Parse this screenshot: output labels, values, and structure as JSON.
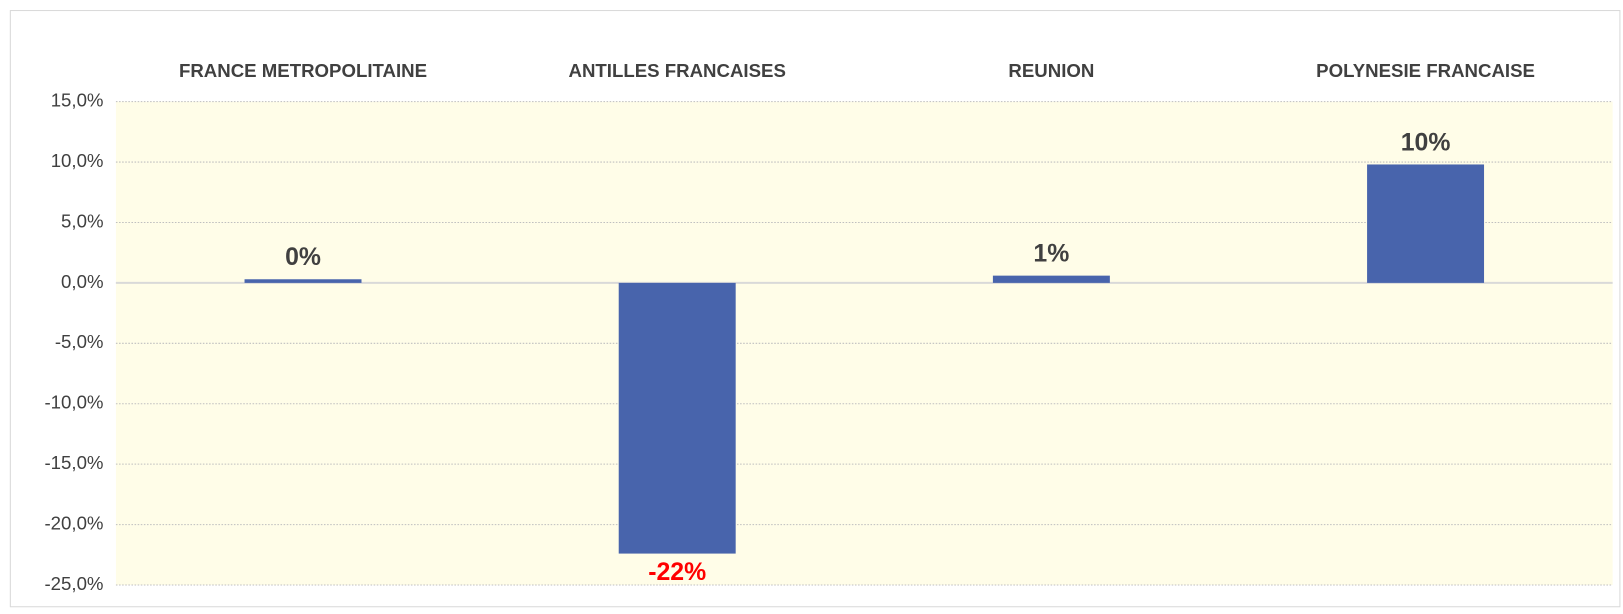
{
  "chart_data": {
    "type": "bar",
    "categories": [
      "FRANCE METROPOLITAINE",
      "ANTILLES FRANCAISES",
      "REUNION",
      "POLYNESIE FRANCAISE"
    ],
    "values": [
      0.3,
      -22.4,
      0.6,
      9.8
    ],
    "value_labels": [
      "0%",
      "-22%",
      "1%",
      "10%"
    ],
    "color": "#4864ac",
    "label_color": "#404040",
    "negative_label_color": "#ff0000",
    "plot_background": "#fffde8",
    "ylim": [
      -25,
      15
    ],
    "yticks": [
      {
        "value": 15,
        "label": "15,0%"
      },
      {
        "value": 10,
        "label": "10,0%"
      },
      {
        "value": 5,
        "label": "5,0%"
      },
      {
        "value": 0,
        "label": "0,0%"
      },
      {
        "value": -5,
        "label": "-5,0%"
      },
      {
        "value": -10,
        "label": "-10,0%"
      },
      {
        "value": -15,
        "label": "-15,0%"
      },
      {
        "value": -20,
        "label": "-20,0%"
      },
      {
        "value": -25,
        "label": "-25,0%"
      }
    ],
    "grid": true
  }
}
